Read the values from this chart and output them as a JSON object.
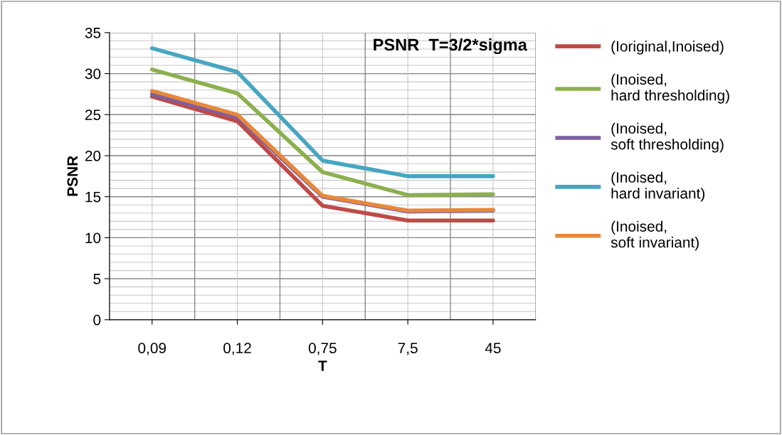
{
  "chart_data": {
    "type": "line",
    "title": "PSNR  T=3/2*sigma",
    "xlabel": "T",
    "ylabel": "PSNR",
    "categories": [
      "0,09",
      "0,12",
      "0,75",
      "7,5",
      "45"
    ],
    "series": [
      {
        "name": "(Ioriginal,Inoised)",
        "color": "#be4b48",
        "values": [
          27.2,
          24.2,
          13.9,
          12.1,
          12.1
        ]
      },
      {
        "name": "(Inoised, hard thresholding)",
        "color": "#8cb04e",
        "values": [
          30.5,
          27.6,
          18.0,
          15.2,
          15.3
        ]
      },
      {
        "name": "(Inoised, soft thresholding)",
        "color": "#7e5fa0",
        "values": [
          27.5,
          24.7,
          15.0,
          13.2,
          13.3
        ]
      },
      {
        "name": "(Inoised, hard invariant)",
        "color": "#47a6c0",
        "values": [
          33.1,
          30.2,
          19.4,
          17.5,
          17.5
        ]
      },
      {
        "name": "(Inoised, soft invariant)",
        "color": "#e8883a",
        "values": [
          27.9,
          25.0,
          15.1,
          13.3,
          13.4
        ]
      }
    ],
    "ylim": [
      0,
      35
    ],
    "yticks": [
      0,
      5,
      10,
      15,
      20,
      25,
      30,
      35
    ],
    "grid": true,
    "legend": "right",
    "marker": "none",
    "line_style": "solid"
  }
}
